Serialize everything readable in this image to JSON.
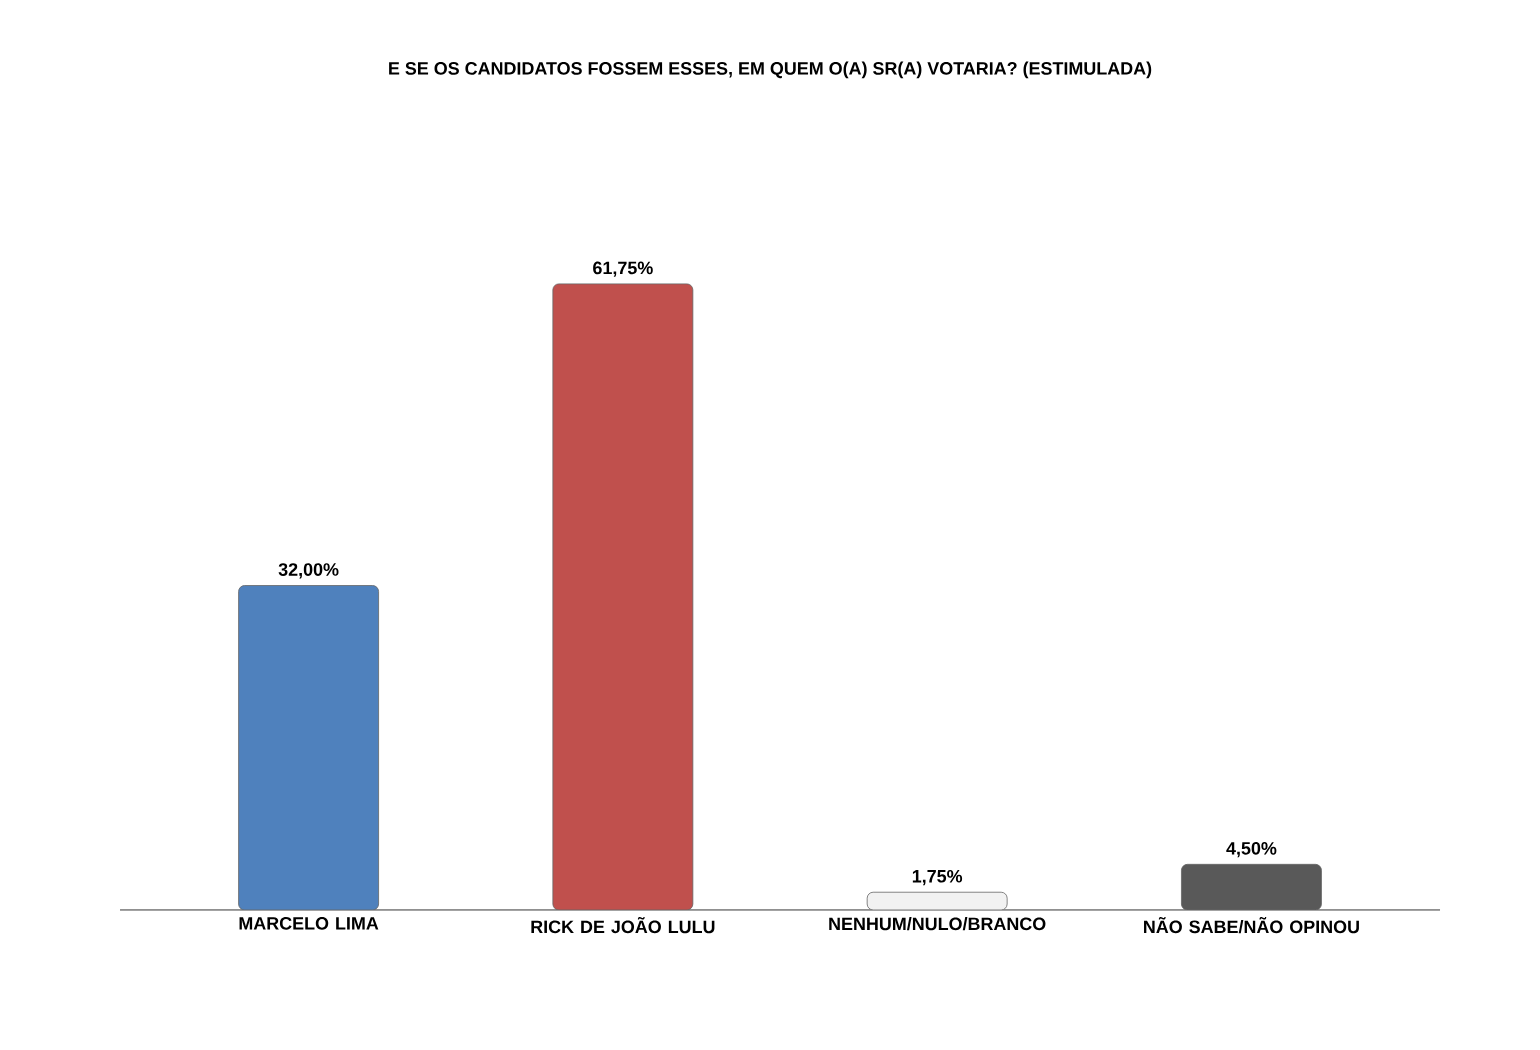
{
  "chart_data": {
    "type": "bar",
    "title": "E SE OS CANDIDATOS FOSSEM ESSES, EM QUEM O(A) SR(A) VOTARIA? (ESTIMULADA)",
    "categories": [
      "MARCELO LIMA",
      "RICK DE JOÃO LULU",
      "NENHUM/NULO/BRANCO",
      "NÃO SABE/NÃO OPINOU"
    ],
    "values": [
      32.0,
      61.75,
      1.75,
      4.5
    ],
    "value_labels": [
      "32,00%",
      "61,75%",
      "1,75%",
      "4,50%"
    ],
    "colors": [
      "#4f81bd",
      "#c0504d",
      "#f2f2f2",
      "#595959"
    ]
  }
}
